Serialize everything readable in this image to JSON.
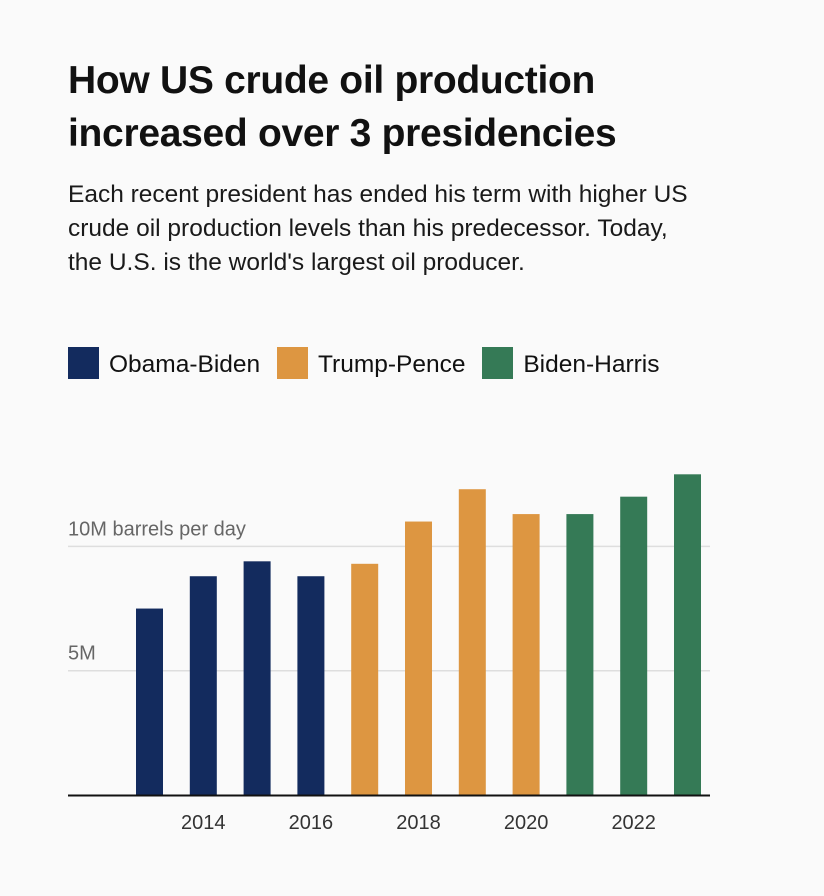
{
  "header": {
    "title": "How US crude oil production increased over 3 presidencies",
    "subtitle": "Each recent president has ended his term with higher US crude oil production levels than his predecessor. Today, the U.S. is the world's largest oil producer."
  },
  "legend": [
    {
      "label": "Obama-Biden",
      "color": "#132b5e"
    },
    {
      "label": "Trump-Pence",
      "color": "#dd9641"
    },
    {
      "label": "Biden-Harris",
      "color": "#357a56"
    }
  ],
  "chart_data": {
    "type": "bar",
    "title": "How US crude oil production increased over 3 presidencies",
    "xlabel": "",
    "ylabel": "barrels per day (millions)",
    "categories": [
      "2013",
      "2014",
      "2015",
      "2016",
      "2017",
      "2018",
      "2019",
      "2020",
      "2021",
      "2022",
      "2023"
    ],
    "values": [
      7.5,
      8.8,
      9.4,
      8.8,
      9.3,
      11.0,
      12.3,
      11.3,
      11.3,
      12.0,
      12.9
    ],
    "groups": [
      "Obama-Biden",
      "Obama-Biden",
      "Obama-Biden",
      "Obama-Biden",
      "Trump-Pence",
      "Trump-Pence",
      "Trump-Pence",
      "Trump-Pence",
      "Biden-Harris",
      "Biden-Harris",
      "Biden-Harris"
    ],
    "ylim": [
      0,
      13
    ],
    "y_ticks": [
      {
        "value": 5,
        "label": "5M"
      },
      {
        "value": 10,
        "label": "10M barrels per day"
      }
    ],
    "x_tick_labels": [
      "2014",
      "2016",
      "2018",
      "2020",
      "2022"
    ],
    "grid": true,
    "legend_position": "top-left"
  }
}
